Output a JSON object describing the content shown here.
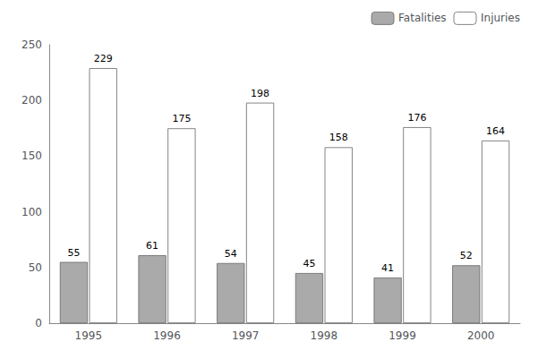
{
  "chart_data": {
    "type": "bar",
    "categories": [
      "1995",
      "1996",
      "1997",
      "1998",
      "1999",
      "2000"
    ],
    "series": [
      {
        "name": "Fatalities",
        "color": "#aaaaaa",
        "values": [
          55,
          61,
          54,
          45,
          41,
          52
        ]
      },
      {
        "name": "Injuries",
        "color": "#ffffff",
        "values": [
          229,
          175,
          198,
          158,
          176,
          164
        ]
      }
    ],
    "ylim": [
      0,
      250
    ],
    "yticks": [
      0,
      50,
      100,
      150,
      200,
      250
    ],
    "grid": false,
    "legend": "upper right",
    "data_labels": true
  }
}
